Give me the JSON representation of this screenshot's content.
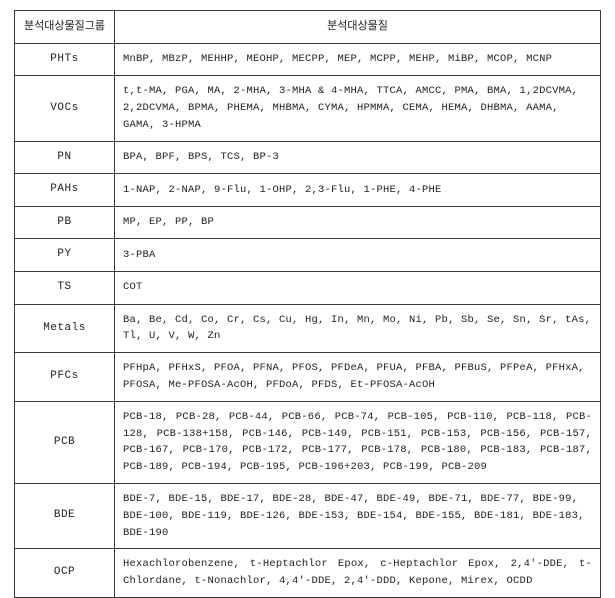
{
  "table": {
    "headers": {
      "group": "분석대상물질그룹",
      "items": "분석대상물질"
    },
    "rows": [
      {
        "group": "PHTs",
        "items": "MnBP, MBzP, MEHHP, MEOHP, MECPP, MEP, MCPP, MEHP, MiBP, MCOP, MCNP"
      },
      {
        "group": "VOCs",
        "items": "t,t-MA, PGA, MA, 2-MHA, 3-MHA & 4-MHA, TTCA, AMCC, PMA, BMA, 1,2DCVMA, 2,2DCVMA, BPMA, PHEMA, MHBMA, CYMA, HPMMA, CEMA, HEMA, DHBMA, AAMA, GAMA, 3-HPMA"
      },
      {
        "group": "PN",
        "items": "BPA, BPF, BPS, TCS, BP-3"
      },
      {
        "group": "PAHs",
        "items": "1-NAP, 2-NAP, 9-Flu, 1-OHP, 2,3-Flu, 1-PHE, 4-PHE"
      },
      {
        "group": "PB",
        "items": "MP, EP, PP, BP"
      },
      {
        "group": "PY",
        "items": "3-PBA"
      },
      {
        "group": "TS",
        "items": "COT"
      },
      {
        "group": "Metals",
        "items": "Ba, Be, Cd, Co, Cr, Cs, Cu, Hg, In, Mn, Mo, Ni, Pb, Sb, Se, Sn, Sr, tAs, Tl, U, V, W, Zn"
      },
      {
        "group": "PFCs",
        "items": "PFHpA, PFHxS, PFOA, PFNA, PFOS, PFDeA, PFUA, PFBA, PFBuS, PFPeA, PFHxA, PFOSA, Me-PFOSA-AcOH, PFDoA, PFDS, Et-PFOSA-AcOH"
      },
      {
        "group": "PCB",
        "items": "PCB-18, PCB-28, PCB-44, PCB-66, PCB-74, PCB-105, PCB-110, PCB-118, PCB-128, PCB-138+158, PCB-146, PCB-149, PCB-151, PCB-153, PCB-156, PCB-157, PCB-167, PCB-170, PCB-172, PCB-177, PCB-178, PCB-180, PCB-183, PCB-187, PCB-189, PCB-194, PCB-195, PCB-196+203, PCB-199, PCB-209",
        "justify": true
      },
      {
        "group": "BDE",
        "items": "BDE-7, BDE-15, BDE-17, BDE-28, BDE-47, BDE-49, BDE-71, BDE-77, BDE-99, BDE-100, BDE-119, BDE-126, BDE-153, BDE-154, BDE-155, BDE-181, BDE-183, BDE-190"
      },
      {
        "group": "OCP",
        "items": "Hexachlorobenzene, t-Heptachlor Epox, c-Heptachlor Epox, 2,4'-DDE, t-Chlordane, t-Nonachlor, 4,4'-DDE, 2,4'-DDD, Kepone, Mirex, OCDD",
        "justify": true
      }
    ]
  }
}
